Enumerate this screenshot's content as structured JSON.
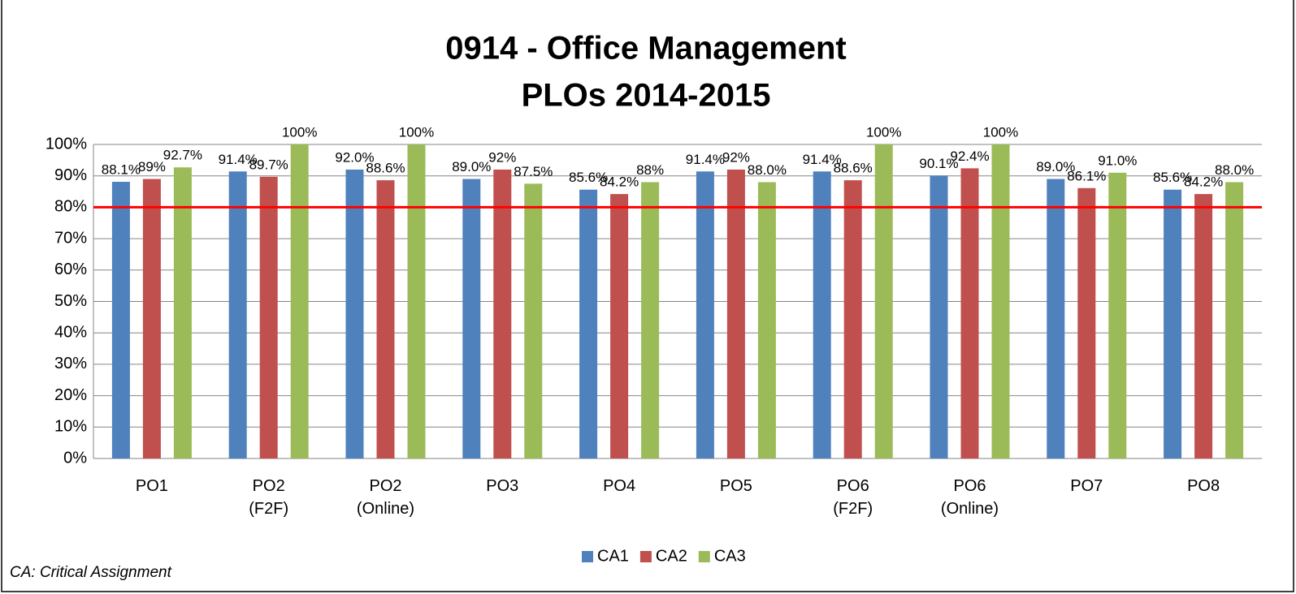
{
  "chart_data": {
    "type": "bar",
    "title": [
      "0914 - Office Management",
      "PLOs 2014-2015"
    ],
    "categories": [
      "PO1",
      "PO2\n(F2F)",
      "PO2\n(Online)",
      "PO3",
      "PO4",
      "PO5",
      "PO6\n(F2F)",
      "PO6\n(Online)",
      "PO7",
      "PO8"
    ],
    "series": [
      {
        "name": "CA1",
        "color": "#4f81bd",
        "values": [
          88.1,
          91.4,
          92.0,
          89.0,
          85.6,
          91.4,
          91.4,
          90.1,
          89.0,
          85.6
        ],
        "value_labels": [
          "88.1%",
          "91.4%",
          "92.0%",
          "89.0%",
          "85.6%",
          "91.4%",
          "91.4%",
          "90.1%",
          "89.0%",
          "85.6%"
        ]
      },
      {
        "name": "CA2",
        "color": "#c0504d",
        "values": [
          89,
          89.7,
          88.6,
          92,
          84.2,
          92,
          88.6,
          92.4,
          86.1,
          84.2
        ],
        "value_labels": [
          "89%",
          "89.7%",
          "88.6%",
          "92%",
          "84.2%",
          "92%",
          "88.6%",
          "92.4%",
          "86.1%",
          "84.2%"
        ]
      },
      {
        "name": "CA3",
        "color": "#9bbb59",
        "values": [
          92.7,
          100,
          100,
          87.5,
          88,
          88.0,
          100,
          100,
          91.0,
          88.0
        ],
        "value_labels": [
          "92.7%",
          "100%",
          "100%",
          "87.5%",
          "88%",
          "88.0%",
          "100%",
          "100%",
          "91.0%",
          "88.0%"
        ]
      }
    ],
    "ylim": [
      0,
      100
    ],
    "yticks": [
      {
        "value": 0,
        "label": "0%"
      },
      {
        "value": 10,
        "label": "10%"
      },
      {
        "value": 20,
        "label": "20%"
      },
      {
        "value": 30,
        "label": "30%"
      },
      {
        "value": 40,
        "label": "40%"
      },
      {
        "value": 50,
        "label": "50%"
      },
      {
        "value": 60,
        "label": "60%"
      },
      {
        "value": 70,
        "label": "70%"
      },
      {
        "value": 80,
        "label": "80%"
      },
      {
        "value": 90,
        "label": "90%"
      },
      {
        "value": 100,
        "label": "100%"
      }
    ],
    "grid": true,
    "reference_line": {
      "value": 80,
      "color": "#ff0000"
    },
    "legend": "bottom",
    "note": "CA: Critical Assignment"
  }
}
